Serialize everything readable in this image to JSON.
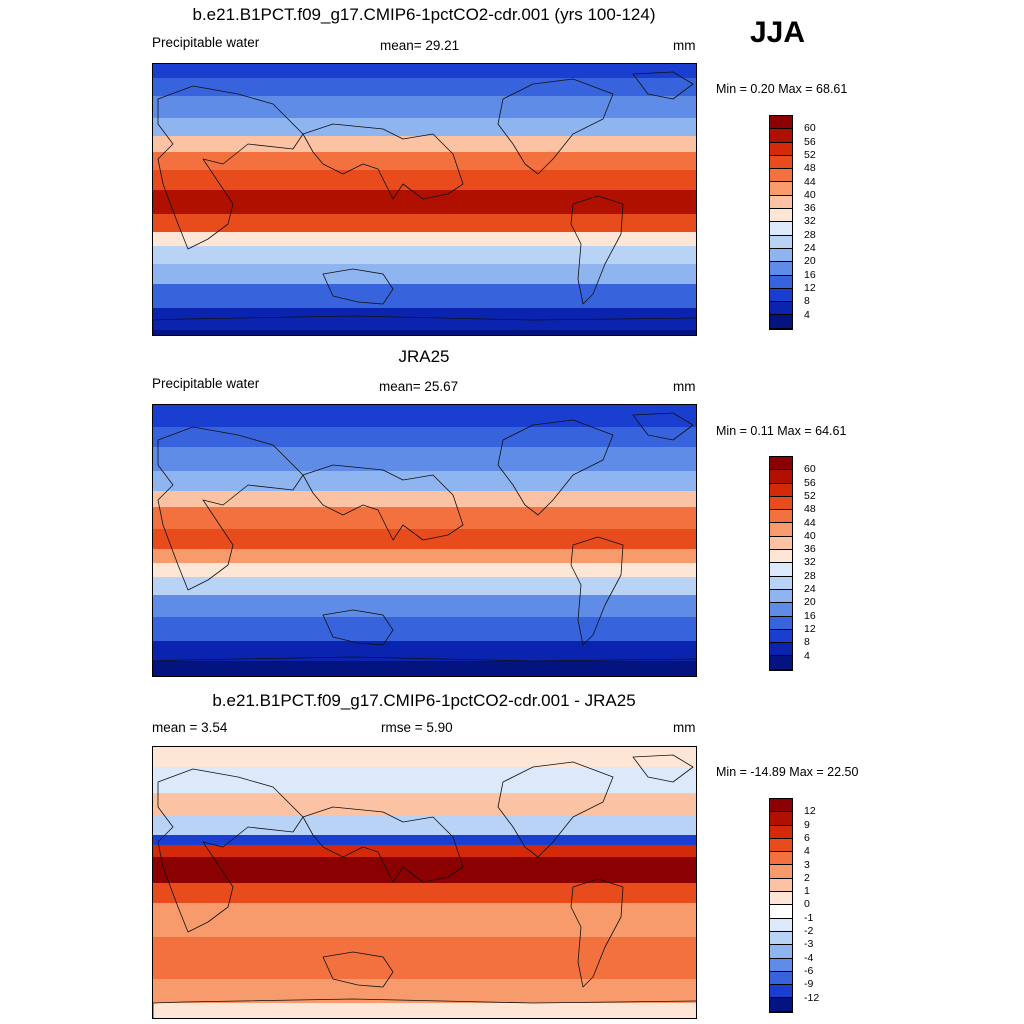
{
  "season": "JJA",
  "panels": [
    {
      "title": "b.e21.B1PCT.f09_g17.CMIP6-1pctCO2-cdr.001 (yrs 100-124)",
      "left_label": "Precipitable water",
      "center_label": "mean=  29.21",
      "units": "mm",
      "minmax": "Min =   0.20 Max =  68.61",
      "colorbar": {
        "labels": [
          "60",
          "56",
          "52",
          "48",
          "44",
          "40",
          "36",
          "32",
          "28",
          "24",
          "20",
          "16",
          "12",
          "8",
          "4"
        ],
        "colors": [
          "#8b0000",
          "#b01000",
          "#d42a0a",
          "#e84c1c",
          "#f2713f",
          "#f79a6c",
          "#fbc3a3",
          "#fde6d6",
          "#dbe9fb",
          "#b9d3f7",
          "#8fb5f0",
          "#5f8ce6",
          "#3763dc",
          "#1a3fd0",
          "#0b24b0",
          "#03137f"
        ]
      },
      "bands": [
        {
          "top": 0,
          "h": 14,
          "color": "#1a3fd0"
        },
        {
          "top": 14,
          "h": 18,
          "color": "#3763dc"
        },
        {
          "top": 32,
          "h": 22,
          "color": "#5f8ce6"
        },
        {
          "top": 54,
          "h": 18,
          "color": "#8fb5f0"
        },
        {
          "top": 72,
          "h": 16,
          "color": "#fbc3a3"
        },
        {
          "top": 88,
          "h": 18,
          "color": "#f2713f"
        },
        {
          "top": 106,
          "h": 20,
          "color": "#e84c1c"
        },
        {
          "top": 126,
          "h": 24,
          "color": "#b01000"
        },
        {
          "top": 150,
          "h": 18,
          "color": "#e84c1c"
        },
        {
          "top": 168,
          "h": 14,
          "color": "#fde6d6"
        },
        {
          "top": 182,
          "h": 18,
          "color": "#b9d3f7"
        },
        {
          "top": 200,
          "h": 20,
          "color": "#8fb5f0"
        },
        {
          "top": 220,
          "h": 24,
          "color": "#3763dc"
        },
        {
          "top": 244,
          "h": 22,
          "color": "#0b24b0"
        },
        {
          "top": 266,
          "h": 6,
          "color": "#03137f"
        }
      ]
    },
    {
      "title": "JRA25",
      "left_label": "Precipitable water",
      "center_label": "mean=  25.67",
      "units": "mm",
      "minmax": "Min =   0.11 Max =  64.61",
      "colorbar": {
        "labels": [
          "60",
          "56",
          "52",
          "48",
          "44",
          "40",
          "36",
          "32",
          "28",
          "24",
          "20",
          "16",
          "12",
          "8",
          "4"
        ],
        "colors": [
          "#8b0000",
          "#b01000",
          "#d42a0a",
          "#e84c1c",
          "#f2713f",
          "#f79a6c",
          "#fbc3a3",
          "#fde6d6",
          "#dbe9fb",
          "#b9d3f7",
          "#8fb5f0",
          "#5f8ce6",
          "#3763dc",
          "#1a3fd0",
          "#0b24b0",
          "#03137f"
        ]
      },
      "bands": [
        {
          "top": 0,
          "h": 22,
          "color": "#1a3fd0"
        },
        {
          "top": 22,
          "h": 20,
          "color": "#3763dc"
        },
        {
          "top": 42,
          "h": 24,
          "color": "#5f8ce6"
        },
        {
          "top": 66,
          "h": 20,
          "color": "#8fb5f0"
        },
        {
          "top": 86,
          "h": 16,
          "color": "#fbc3a3"
        },
        {
          "top": 102,
          "h": 22,
          "color": "#f2713f"
        },
        {
          "top": 124,
          "h": 20,
          "color": "#e84c1c"
        },
        {
          "top": 144,
          "h": 14,
          "color": "#f79a6c"
        },
        {
          "top": 158,
          "h": 14,
          "color": "#fde6d6"
        },
        {
          "top": 172,
          "h": 18,
          "color": "#b9d3f7"
        },
        {
          "top": 190,
          "h": 22,
          "color": "#5f8ce6"
        },
        {
          "top": 212,
          "h": 24,
          "color": "#3763dc"
        },
        {
          "top": 236,
          "h": 20,
          "color": "#0b24b0"
        },
        {
          "top": 256,
          "h": 16,
          "color": "#03137f"
        }
      ]
    },
    {
      "title": "b.e21.B1PCT.f09_g17.CMIP6-1pctCO2-cdr.001 - JRA25",
      "left_label": "mean =   3.54",
      "center_label": "rmse =   5.90",
      "units": "mm",
      "minmax": "Min = -14.89 Max =  22.50",
      "colorbar": {
        "labels": [
          "12",
          "9",
          "6",
          "4",
          "3",
          "2",
          "1",
          "0",
          "-1",
          "-2",
          "-3",
          "-4",
          "-6",
          "-9",
          "-12"
        ],
        "colors": [
          "#8b0000",
          "#b01000",
          "#d42a0a",
          "#e84c1c",
          "#f2713f",
          "#f79a6c",
          "#fbc3a3",
          "#fde6d6",
          "#ffffff",
          "#dbe9fb",
          "#b9d3f7",
          "#8fb5f0",
          "#5f8ce6",
          "#3763dc",
          "#1a3fd0",
          "#03137f"
        ]
      },
      "bands": [
        {
          "top": 0,
          "h": 20,
          "color": "#fde6d6"
        },
        {
          "top": 20,
          "h": 26,
          "color": "#dbe9fb"
        },
        {
          "top": 46,
          "h": 22,
          "color": "#fbc3a3"
        },
        {
          "top": 68,
          "h": 20,
          "color": "#b9d3f7"
        },
        {
          "top": 88,
          "h": 10,
          "color": "#1a3fd0"
        },
        {
          "top": 98,
          "h": 12,
          "color": "#d42a0a"
        },
        {
          "top": 110,
          "h": 26,
          "color": "#8b0000"
        },
        {
          "top": 136,
          "h": 20,
          "color": "#e84c1c"
        },
        {
          "top": 156,
          "h": 34,
          "color": "#f79a6c"
        },
        {
          "top": 190,
          "h": 42,
          "color": "#f2713f"
        },
        {
          "top": 232,
          "h": 24,
          "color": "#f79a6c"
        },
        {
          "top": 256,
          "h": 16,
          "color": "#fde6d6"
        }
      ]
    }
  ]
}
